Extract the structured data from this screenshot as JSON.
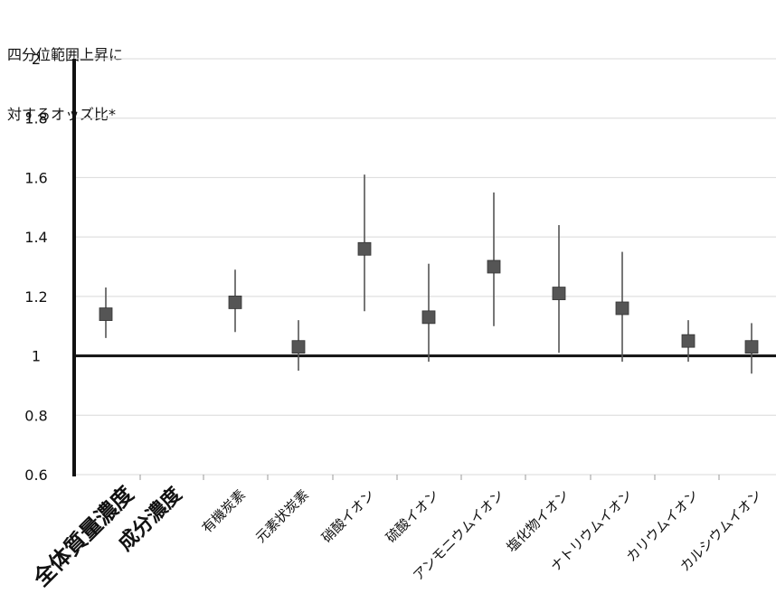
{
  "chart_data": {
    "type": "scatter",
    "ylabel_lines": [
      "四分位範囲上昇に",
      "対するオッズ比*"
    ],
    "ylim": [
      0.6,
      2.0
    ],
    "yticks": [
      "0.6",
      "0.8",
      "1",
      "1.2",
      "1.4",
      "1.6",
      "1.8",
      "2"
    ],
    "reference_line": 1.0,
    "grid": true,
    "categories": [
      "全体質量濃度",
      "成分濃度",
      "有機炭素",
      "元素状炭素",
      "硝酸イオン",
      "硫酸イオン",
      "アンモニウムイオン",
      "塩化物イオン",
      "ナトリウムイオン",
      "カリウムイオン",
      "カルシウムイオン"
    ],
    "points": [
      {
        "category": "全体質量濃度",
        "value": 1.14,
        "lower": 1.06,
        "upper": 1.23
      },
      {
        "category": "有機炭素",
        "value": 1.18,
        "lower": 1.08,
        "upper": 1.29
      },
      {
        "category": "元素状炭素",
        "value": 1.03,
        "lower": 0.95,
        "upper": 1.12
      },
      {
        "category": "硝酸イオン",
        "value": 1.36,
        "lower": 1.15,
        "upper": 1.61
      },
      {
        "category": "硫酸イオン",
        "value": 1.13,
        "lower": 0.98,
        "upper": 1.31
      },
      {
        "category": "アンモニウムイオン",
        "value": 1.3,
        "lower": 1.1,
        "upper": 1.55
      },
      {
        "category": "塩化物イオン",
        "value": 1.21,
        "lower": 1.01,
        "upper": 1.44
      },
      {
        "category": "ナトリウムイオン",
        "value": 1.16,
        "lower": 0.98,
        "upper": 1.35
      },
      {
        "category": "カリウムイオン",
        "value": 1.05,
        "lower": 0.98,
        "upper": 1.12
      },
      {
        "category": "カルシウムイオン",
        "value": 1.03,
        "lower": 0.94,
        "upper": 1.11
      }
    ],
    "colors": {
      "marker": "#555555",
      "whisker": "#555555",
      "axis": "#111111",
      "grid": "#d9d9d9"
    }
  }
}
